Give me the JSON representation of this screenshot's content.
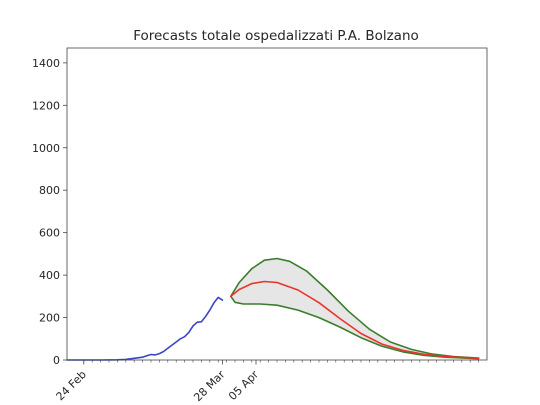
{
  "chart_data": {
    "type": "line",
    "title": "Forecasts totale ospedalizzati P.A. Bolzano",
    "xlabel": "",
    "ylabel": "",
    "ylim": [
      0,
      1470
    ],
    "xlim": [
      "2020-02-20",
      "2020-05-30"
    ],
    "grid": false,
    "legend": "none",
    "y_ticks": [
      0,
      200,
      400,
      600,
      800,
      1000,
      1200,
      1400
    ],
    "x_ticks": [
      {
        "date": "2020-02-24",
        "label": "24 Feb"
      },
      {
        "date": "2020-03-28",
        "label": "28 Mar"
      },
      {
        "date": "2020-04-05",
        "label": "05 Apr"
      }
    ],
    "minor_ticks_from": "2020-02-24",
    "minor_ticks_to": "2020-05-28",
    "colors": {
      "observed": "#3b45c8",
      "forecast": "#e8352b",
      "bounds": "#3a7d2c",
      "band": "#e6e6e6",
      "axes": "#444444"
    },
    "series": [
      {
        "role": "observed",
        "points": [
          [
            "2020-02-20",
            0
          ],
          [
            "2020-02-28",
            0
          ],
          [
            "2020-03-03",
            1
          ],
          [
            "2020-03-05",
            3
          ],
          [
            "2020-03-07",
            8
          ],
          [
            "2020-03-09",
            13
          ],
          [
            "2020-03-10",
            20
          ],
          [
            "2020-03-11",
            26
          ],
          [
            "2020-03-12",
            24
          ],
          [
            "2020-03-13",
            30
          ],
          [
            "2020-03-14",
            40
          ],
          [
            "2020-03-15",
            55
          ],
          [
            "2020-03-16",
            70
          ],
          [
            "2020-03-17",
            85
          ],
          [
            "2020-03-18",
            100
          ],
          [
            "2020-03-19",
            110
          ],
          [
            "2020-03-20",
            130
          ],
          [
            "2020-03-21",
            160
          ],
          [
            "2020-03-22",
            178
          ],
          [
            "2020-03-23",
            180
          ],
          [
            "2020-03-24",
            205
          ],
          [
            "2020-03-25",
            235
          ],
          [
            "2020-03-26",
            270
          ],
          [
            "2020-03-27",
            295
          ],
          [
            "2020-03-28",
            282
          ]
        ]
      },
      {
        "role": "forecast",
        "points": [
          [
            "2020-03-30",
            300
          ],
          [
            "2020-04-01",
            332
          ],
          [
            "2020-04-04",
            360
          ],
          [
            "2020-04-07",
            370
          ],
          [
            "2020-04-10",
            365
          ],
          [
            "2020-04-15",
            330
          ],
          [
            "2020-04-20",
            270
          ],
          [
            "2020-04-25",
            195
          ],
          [
            "2020-04-30",
            125
          ],
          [
            "2020-05-05",
            75
          ],
          [
            "2020-05-10",
            45
          ],
          [
            "2020-05-15",
            27
          ],
          [
            "2020-05-20",
            16
          ],
          [
            "2020-05-28",
            8
          ]
        ]
      },
      {
        "role": "upper bound",
        "points": [
          [
            "2020-03-30",
            300
          ],
          [
            "2020-04-01",
            365
          ],
          [
            "2020-04-04",
            430
          ],
          [
            "2020-04-07",
            470
          ],
          [
            "2020-04-10",
            478
          ],
          [
            "2020-04-13",
            465
          ],
          [
            "2020-04-17",
            420
          ],
          [
            "2020-04-22",
            330
          ],
          [
            "2020-04-27",
            230
          ],
          [
            "2020-05-02",
            145
          ],
          [
            "2020-05-07",
            85
          ],
          [
            "2020-05-12",
            50
          ],
          [
            "2020-05-17",
            28
          ],
          [
            "2020-05-22",
            16
          ],
          [
            "2020-05-28",
            9
          ]
        ]
      },
      {
        "role": "lower bound",
        "points": [
          [
            "2020-03-30",
            300
          ],
          [
            "2020-03-31",
            272
          ],
          [
            "2020-04-02",
            264
          ],
          [
            "2020-04-06",
            264
          ],
          [
            "2020-04-10",
            258
          ],
          [
            "2020-04-15",
            235
          ],
          [
            "2020-04-20",
            200
          ],
          [
            "2020-04-25",
            155
          ],
          [
            "2020-04-30",
            105
          ],
          [
            "2020-05-05",
            65
          ],
          [
            "2020-05-10",
            38
          ],
          [
            "2020-05-15",
            22
          ],
          [
            "2020-05-20",
            13
          ],
          [
            "2020-05-28",
            6
          ]
        ]
      }
    ]
  }
}
